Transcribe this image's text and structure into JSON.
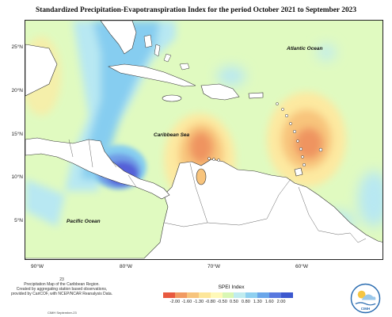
{
  "title": "Standardized Precipitation-Evapotranspiration Index for the period October 2021 to September 2023",
  "map": {
    "latitude_labels": [
      "25°N",
      "20°N",
      "15°N",
      "10°N",
      "5°N"
    ],
    "longitude_labels": [
      "90°W",
      "80°W",
      "70°W",
      "60°W"
    ],
    "place_labels": {
      "atlantic": "Atlantic Ocean",
      "caribbean": "Caribbean Sea",
      "pacific": "Pacific Ocean"
    }
  },
  "notes": {
    "page_number": "23",
    "line1": "Precipitation Map of the Caribbean Region.",
    "line2": "Created by aggregating station based observations,",
    "line3": "provided by CariCOF, with NCEP/NCAR Reanalysis Data.",
    "version": "CIMH September-23"
  },
  "legend": {
    "title": "SPEI Index",
    "ticks": [
      "-2.00",
      "-1.60",
      "-1.30",
      "-0.80",
      "-0.50",
      "0.50",
      "0.80",
      "1.30",
      "1.60",
      "2.00"
    ],
    "colors": [
      "#e8593f",
      "#f19a62",
      "#f7c47d",
      "#fde69a",
      "#fff9b8",
      "#d9f7b4",
      "#c0ecef",
      "#8fd0f0",
      "#6aa6ea",
      "#5878df",
      "#3c58cf"
    ]
  },
  "logo": {
    "text": "CIMH"
  },
  "colors": {
    "land": "#ffffff",
    "near_normal": "#e0fac0",
    "wet_light": "#b8e8f2",
    "wet_mid": "#86cdf0",
    "wet_strong": "#6f9ce6",
    "wet_extreme": "#5560d8",
    "dry_light": "#fde9a0",
    "dry_mid": "#f8c47c",
    "dry_strong": "#ef9460"
  }
}
